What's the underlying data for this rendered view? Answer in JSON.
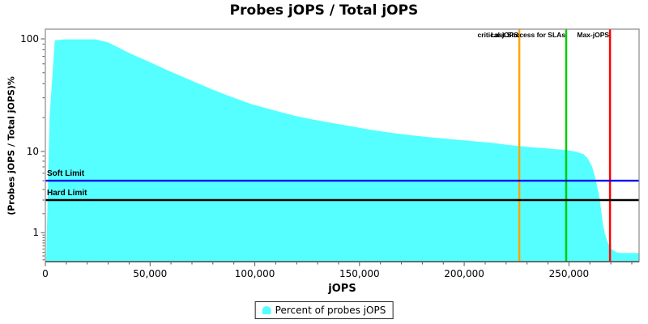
{
  "colors": {
    "area": "#55FFFF",
    "soft_limit": "#0000EE",
    "hard_limit": "#000000",
    "critical_jops": "#FFA500",
    "last_success": "#00CC00",
    "max_jops": "#FF0000",
    "plot_border": "#8a8a8a",
    "axis_line": "#4a4a4a",
    "tick": "#555555",
    "text": "#000000"
  },
  "chart_data": {
    "type": "area",
    "title": "Probes jOPS / Total jOPS",
    "xlabel": "jOPS",
    "ylabel": "(Probes jOPS / Total jOPS)%",
    "xlim": [
      0,
      283500
    ],
    "ylim": [
      0.055,
      120
    ],
    "y_scale": "adjusted-log10",
    "grid": false,
    "legend_position": "bottom-center",
    "x_axis": {
      "major_ticks": [
        0,
        50000,
        100000,
        150000,
        200000,
        250000
      ],
      "major_tick_labels": [
        "0",
        "50,000",
        "100,000",
        "150,000",
        "200,000",
        "250,000"
      ],
      "minor_ticks": [
        10000,
        20000,
        30000,
        40000,
        60000,
        70000,
        80000,
        90000,
        110000,
        120000,
        130000,
        140000,
        160000,
        170000,
        180000,
        190000,
        210000,
        220000,
        230000,
        240000,
        260000,
        270000,
        280000
      ]
    },
    "y_axis": {
      "major_ticks": [
        100,
        10,
        1
      ],
      "major_tick_labels": [
        "100",
        "10",
        "1"
      ],
      "minor_ticks": [
        90,
        80,
        70,
        60,
        50,
        40,
        30,
        20,
        9,
        8,
        7,
        6,
        5,
        4,
        3,
        2,
        0.9,
        0.8,
        0.7,
        0.6,
        0.5,
        0.4,
        0.3,
        0.2,
        0.1
      ]
    },
    "series": [
      {
        "name": "Percent of probes jOPS",
        "points": [
          [
            400,
            0.06
          ],
          [
            2000,
            20
          ],
          [
            4500,
            97
          ],
          [
            9000,
            99
          ],
          [
            24000,
            99
          ],
          [
            30000,
            93
          ],
          [
            40000,
            75
          ],
          [
            50000,
            62
          ],
          [
            60000,
            51
          ],
          [
            70000,
            42.5
          ],
          [
            79000,
            36
          ],
          [
            88000,
            31
          ],
          [
            98000,
            26.5
          ],
          [
            108000,
            23.5
          ],
          [
            118000,
            21
          ],
          [
            127000,
            19.3
          ],
          [
            137000,
            17.9
          ],
          [
            147000,
            16.6
          ],
          [
            156000,
            15.5
          ],
          [
            166000,
            14.6
          ],
          [
            175000,
            13.9
          ],
          [
            185000,
            13.3
          ],
          [
            195000,
            12.8
          ],
          [
            205000,
            12.3
          ],
          [
            214000,
            11.9
          ],
          [
            220000,
            11.5
          ],
          [
            226000,
            11.2
          ],
          [
            232000,
            10.9
          ],
          [
            238000,
            10.7
          ],
          [
            243000,
            10.5
          ],
          [
            249000,
            10.3
          ],
          [
            253000,
            10.0
          ],
          [
            257000,
            9.4
          ],
          [
            259000,
            8.5
          ],
          [
            261000,
            7.1
          ],
          [
            262200,
            5.8
          ],
          [
            263200,
            4.6
          ],
          [
            264200,
            3.6
          ],
          [
            264900,
            2.8
          ],
          [
            265600,
            2.0
          ],
          [
            266200,
            1.4
          ],
          [
            267200,
            0.95
          ],
          [
            268600,
            0.6
          ],
          [
            270000,
            0.42
          ],
          [
            271300,
            0.35
          ],
          [
            273000,
            0.3
          ],
          [
            275000,
            0.28
          ],
          [
            283500,
            0.28
          ]
        ]
      }
    ],
    "h_markers": [
      {
        "name": "soft-limit",
        "label": "Soft Limit",
        "value": 5,
        "color": "#0000EE"
      },
      {
        "name": "hard-limit",
        "label": "Hard Limit",
        "value": 3,
        "color": "#000000"
      }
    ],
    "v_markers": [
      {
        "name": "critical-jops",
        "label": "critical-jOPS",
        "value": 226300,
        "color": "#FFA500"
      },
      {
        "name": "last-success-for-slas",
        "label": "Last Success for SLAs",
        "value": 248700,
        "color": "#00CC00"
      },
      {
        "name": "max-jops",
        "label": "Max-jOPS",
        "value": 269600,
        "color": "#FF0000"
      }
    ]
  }
}
